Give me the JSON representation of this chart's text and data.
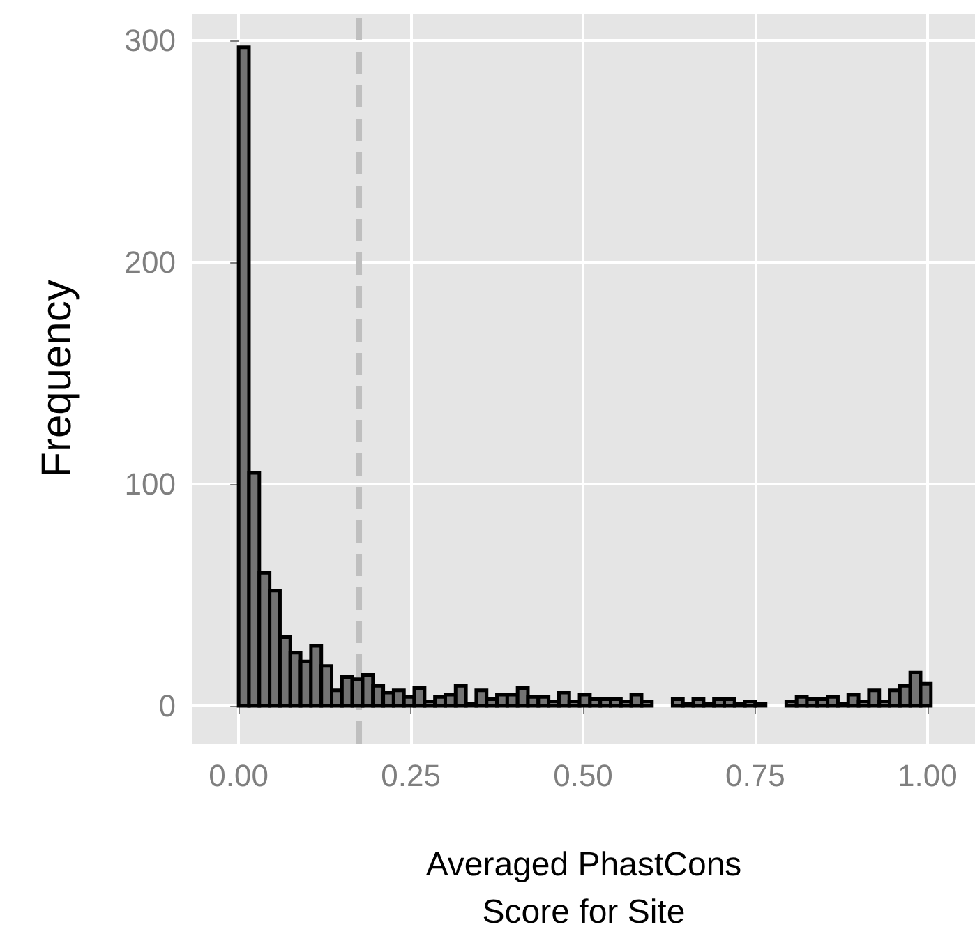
{
  "chart_data": {
    "type": "histogram",
    "xlabel": "Averaged PhastCons\nScore for Site",
    "ylabel": "Frequency",
    "bins": [
      0,
      0.015,
      0.03,
      0.045,
      0.06,
      0.075,
      0.09,
      0.105,
      0.12,
      0.135,
      0.15,
      0.165,
      0.18,
      0.195,
      0.21,
      0.225,
      0.24,
      0.255,
      0.27,
      0.285,
      0.3,
      0.315,
      0.33,
      0.345,
      0.36,
      0.375,
      0.39,
      0.405,
      0.42,
      0.435,
      0.45,
      0.465,
      0.48,
      0.495,
      0.51,
      0.525,
      0.54,
      0.555,
      0.57,
      0.585,
      0.6,
      0.615,
      0.63,
      0.645,
      0.66,
      0.675,
      0.69,
      0.705,
      0.72,
      0.735,
      0.75,
      0.765,
      0.78,
      0.795,
      0.81,
      0.825,
      0.84,
      0.855,
      0.87,
      0.885,
      0.9,
      0.915,
      0.93,
      0.945,
      0.96,
      0.975,
      0.99,
      1.005
    ],
    "values": [
      297,
      105,
      60,
      52,
      31,
      24,
      20,
      27,
      18,
      7,
      13,
      12,
      14,
      9,
      6,
      7,
      4,
      8,
      2,
      4,
      5,
      9,
      1,
      7,
      3,
      5,
      5,
      8,
      4,
      4,
      2,
      6,
      2,
      5,
      3,
      3,
      3,
      2,
      5,
      2,
      0,
      0,
      3,
      1,
      3,
      1,
      3,
      3,
      1,
      2,
      1,
      0,
      0,
      2,
      4,
      3,
      3,
      4,
      1,
      5,
      2,
      7,
      2,
      7,
      9,
      15,
      10
    ],
    "color": "#737373",
    "xlim": [
      -0.067,
      1.069
    ],
    "ylim": [
      -17,
      312
    ],
    "xticks": [
      {
        "value": 0,
        "label": "0.00"
      },
      {
        "value": 0.25,
        "label": "0.25"
      },
      {
        "value": 0.5,
        "label": "0.50"
      },
      {
        "value": 0.75,
        "label": "0.75"
      },
      {
        "value": 1,
        "label": "1.00"
      }
    ],
    "yticks": [
      0,
      100,
      200,
      300
    ],
    "grid": true,
    "ref_lines": [
      {
        "axis": "x",
        "value": 0.175,
        "label": null,
        "color": "#bfbfbf",
        "line_style": "dashed"
      }
    ]
  }
}
